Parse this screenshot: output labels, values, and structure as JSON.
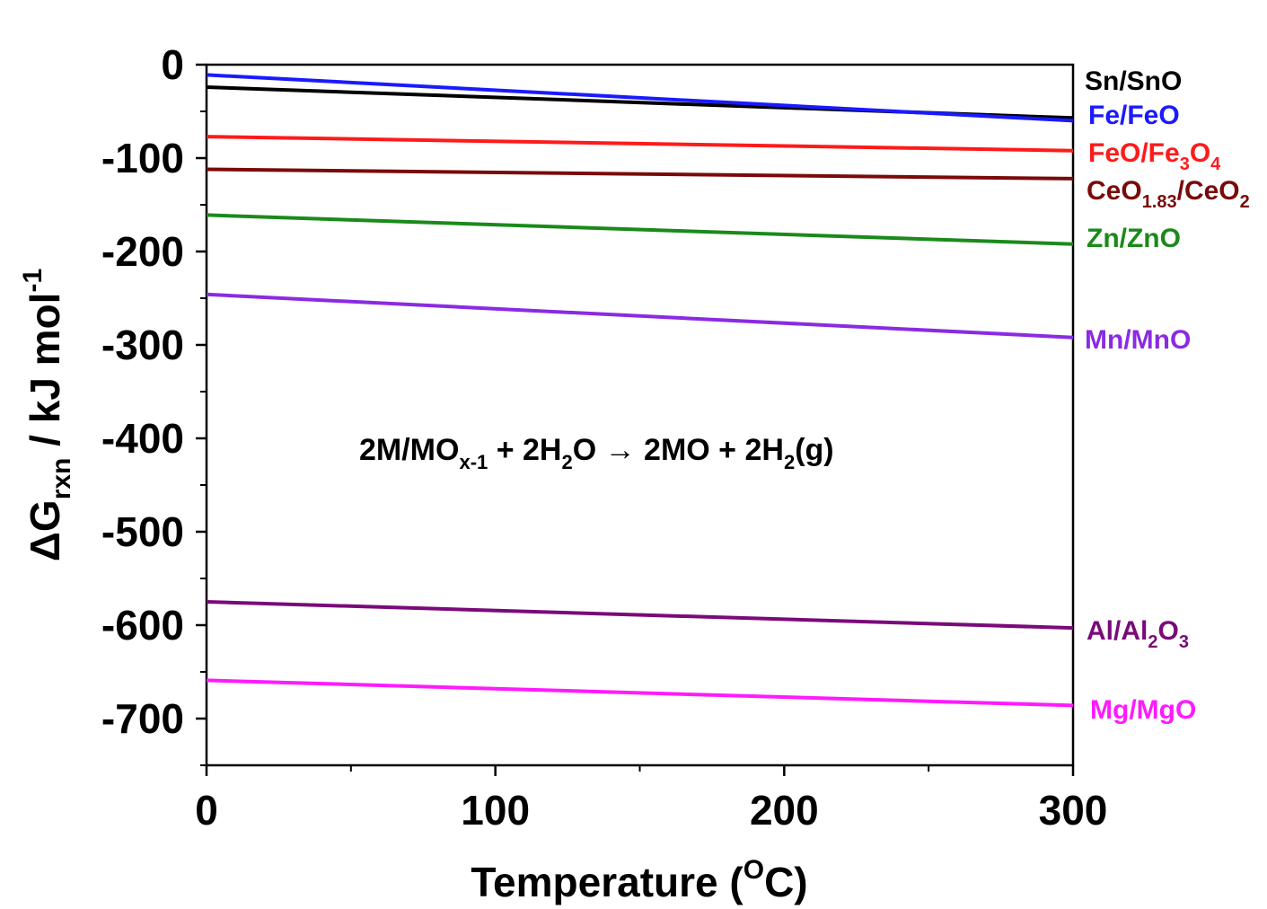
{
  "chart_data": {
    "type": "line",
    "xlabel": "Temperature (",
    "xlabel_sup": "O",
    "xlabel_end": "C)",
    "ylabel_main": "ΔG",
    "ylabel_sub": "rxn",
    "ylabel_rest": " / kJ mol",
    "ylabel_sup": "-1",
    "xlim": [
      0,
      300
    ],
    "ylim": [
      -750,
      0
    ],
    "x_major_ticks": [
      0,
      100,
      200,
      300
    ],
    "x_tick_labels": [
      "0",
      "100",
      "200",
      "300"
    ],
    "x_minor_ticks": [
      50,
      150,
      250
    ],
    "y_major_ticks": [
      0,
      -100,
      -200,
      -300,
      -400,
      -500,
      -600,
      -700
    ],
    "y_tick_labels": [
      "0",
      "-100",
      "-200",
      "-300",
      "-400",
      "-500",
      "-600",
      "-700"
    ],
    "y_minor_ticks": [
      -50,
      -150,
      -250,
      -350,
      -450,
      -550,
      -650,
      -750
    ],
    "grid": false,
    "annotation": {
      "parts": [
        {
          "t": "2M/MO"
        },
        {
          "t": "x-1",
          "sub": true
        },
        {
          "t": " + 2H"
        },
        {
          "t": "2",
          "sub": true
        },
        {
          "t": "O → 2MO + 2H"
        },
        {
          "t": "2",
          "sub": true
        },
        {
          "t": "(g)"
        }
      ]
    },
    "series": [
      {
        "id": "sn",
        "color": "#000000",
        "x": [
          0,
          300
        ],
        "y": [
          -24,
          -57
        ],
        "label": [
          {
            "t": "Sn/SnO"
          }
        ]
      },
      {
        "id": "fe",
        "color": "#1a1aff",
        "x": [
          0,
          300
        ],
        "y": [
          -11,
          -60
        ],
        "label": [
          {
            "t": "Fe/FeO"
          }
        ]
      },
      {
        "id": "feo",
        "color": "#ff1a1a",
        "x": [
          0,
          300
        ],
        "y": [
          -77,
          -92
        ],
        "label": [
          {
            "t": "FeO/Fe"
          },
          {
            "t": "3",
            "sub": true
          },
          {
            "t": "O"
          },
          {
            "t": "4",
            "sub": true
          }
        ]
      },
      {
        "id": "ceo",
        "color": "#7a0a0a",
        "x": [
          0,
          300
        ],
        "y": [
          -112,
          -122
        ],
        "label": [
          {
            "t": "CeO"
          },
          {
            "t": "1.83",
            "sub": true
          },
          {
            "t": "/CeO"
          },
          {
            "t": "2",
            "sub": true
          }
        ]
      },
      {
        "id": "zn",
        "color": "#1a8a1a",
        "x": [
          0,
          300
        ],
        "y": [
          -161,
          -192
        ],
        "label": [
          {
            "t": "Zn/ZnO"
          }
        ]
      },
      {
        "id": "mn",
        "color": "#8a2be2",
        "x": [
          0,
          300
        ],
        "y": [
          -246,
          -292
        ],
        "label": [
          {
            "t": "Mn/MnO"
          }
        ]
      },
      {
        "id": "al",
        "color": "#7a0a7a",
        "x": [
          0,
          300
        ],
        "y": [
          -575,
          -603
        ],
        "label": [
          {
            "t": "Al/Al"
          },
          {
            "t": "2",
            "sub": true
          },
          {
            "t": "O"
          },
          {
            "t": "3",
            "sub": true
          }
        ]
      },
      {
        "id": "mg",
        "color": "#ff1aff",
        "x": [
          0,
          300
        ],
        "y": [
          -659,
          -686
        ],
        "label": [
          {
            "t": "Mg/MgO"
          }
        ]
      }
    ]
  }
}
